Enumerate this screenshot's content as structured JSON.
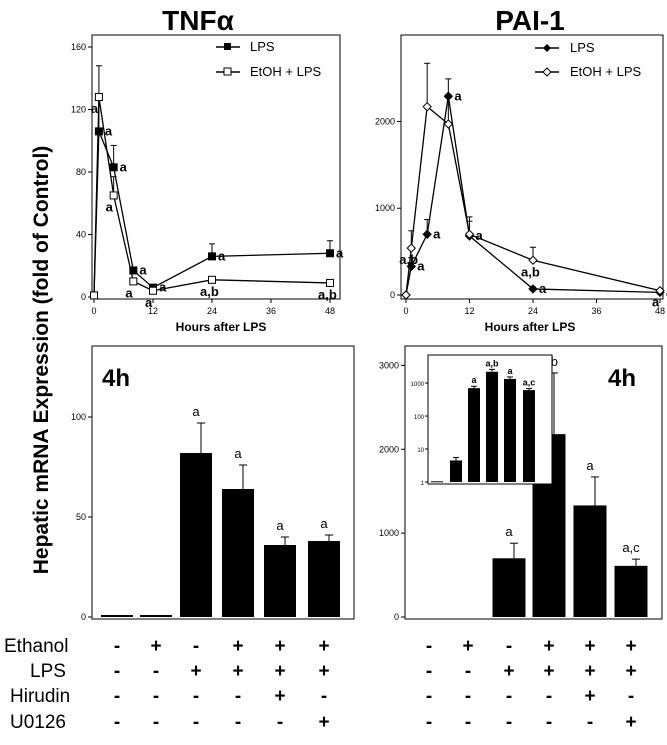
{
  "figure": {
    "ylabel": "Hepatic mRNA Expression (fold of Control)"
  },
  "treatment_table": {
    "row_labels": [
      "Ethanol",
      "LPS",
      "Hirudin",
      "U0126"
    ],
    "signs": [
      [
        "-",
        "+",
        "-",
        "+",
        "+",
        "+"
      ],
      [
        "-",
        "-",
        "+",
        "+",
        "+",
        "+"
      ],
      [
        "-",
        "-",
        "-",
        "-",
        "+",
        "-"
      ],
      [
        "-",
        "-",
        "-",
        "-",
        "-",
        "+"
      ]
    ]
  },
  "chart_data": [
    {
      "id": "tnf-time",
      "type": "line",
      "title": "TNFα",
      "xlabel": "Hours after LPS",
      "ylabel": "",
      "x_ticks": [
        0,
        12,
        24,
        36,
        48
      ],
      "y_ticks": [
        0,
        40,
        80,
        120,
        160
      ],
      "xlim": [
        0,
        48
      ],
      "ylim": [
        0,
        160
      ],
      "legend_position": "top-right",
      "series": [
        {
          "name": "LPS",
          "marker": "filled-square",
          "x": [
            0,
            1,
            4,
            8,
            12,
            24,
            48
          ],
          "y": [
            1,
            106,
            83,
            17,
            6,
            26,
            28
          ],
          "err": [
            0,
            20,
            14,
            2,
            2,
            8,
            8
          ],
          "annotations": [
            "",
            "a",
            "a",
            "a",
            "a",
            "a",
            "a"
          ]
        },
        {
          "name": "EtOH + LPS",
          "marker": "open-square",
          "x": [
            0,
            1,
            4,
            8,
            12,
            24,
            48
          ],
          "y": [
            1,
            128,
            65,
            10,
            4,
            11,
            9
          ],
          "err": [
            0,
            20,
            12,
            2,
            1,
            1,
            1
          ],
          "annotations": [
            "",
            "a",
            "a",
            "a",
            "a",
            "a,b",
            "a,b"
          ]
        }
      ]
    },
    {
      "id": "pai-time",
      "type": "line",
      "title": "PAI-1",
      "xlabel": "Hours after LPS",
      "ylabel": "",
      "x_ticks": [
        0,
        12,
        24,
        36,
        48
      ],
      "y_ticks": [
        0,
        1000,
        2000
      ],
      "xlim": [
        0,
        48
      ],
      "ylim": [
        0,
        2800
      ],
      "legend_position": "top-right",
      "series": [
        {
          "name": "LPS",
          "marker": "filled-diamond",
          "x": [
            0,
            1,
            4,
            8,
            12,
            24,
            48
          ],
          "y": [
            0,
            330,
            700,
            2290,
            680,
            70,
            30
          ],
          "err": [
            0,
            100,
            170,
            200,
            170,
            20,
            10
          ],
          "annotations": [
            "",
            "a",
            "a",
            "a",
            "a",
            "a",
            "a"
          ]
        },
        {
          "name": "EtOH + LPS",
          "marker": "open-diamond",
          "x": [
            0,
            1,
            4,
            8,
            12,
            24,
            48
          ],
          "y": [
            0,
            540,
            2170,
            1970,
            700,
            400,
            50
          ],
          "err": [
            0,
            200,
            500,
            300,
            200,
            150,
            15
          ],
          "annotations": [
            "",
            "a,b",
            "",
            "",
            "",
            "a,b",
            "a"
          ]
        }
      ]
    },
    {
      "id": "tnf-bar",
      "type": "bar",
      "label": "4h",
      "y_ticks": [
        0,
        50,
        100
      ],
      "ylim": [
        0,
        130
      ],
      "values": [
        1,
        1,
        82,
        64,
        36,
        38
      ],
      "err": [
        0,
        0,
        15,
        12,
        4,
        3
      ],
      "annotations": [
        "",
        "",
        "a",
        "a",
        "a",
        "a"
      ]
    },
    {
      "id": "pai-bar",
      "type": "bar",
      "label": "4h",
      "y_ticks": [
        0,
        1000,
        2000,
        3000
      ],
      "ylim": [
        0,
        3100
      ],
      "values": [
        0,
        0,
        700,
        2180,
        1330,
        610
      ],
      "err": [
        0,
        0,
        180,
        730,
        340,
        80
      ],
      "annotations": [
        "",
        "",
        "a",
        "a,b",
        "a",
        "a,c"
      ],
      "inset": {
        "type": "bar",
        "scale": "log",
        "y_ticks": [
          1,
          10,
          100,
          1000
        ],
        "ylim": [
          1,
          5000
        ],
        "values": [
          1.05,
          4.5,
          700,
          2200,
          1330,
          610
        ],
        "err": [
          0,
          1,
          100,
          400,
          200,
          70
        ],
        "annotations": [
          "",
          "",
          "a",
          "a,b",
          "a",
          "a,c"
        ]
      }
    }
  ]
}
